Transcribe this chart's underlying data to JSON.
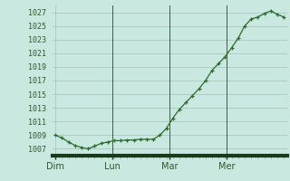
{
  "x_values": [
    0,
    1,
    2,
    3,
    4,
    5,
    6,
    7,
    8,
    9,
    10,
    11,
    12,
    13,
    14,
    15,
    16,
    17,
    18,
    19,
    20,
    21,
    22,
    23,
    24,
    25,
    26,
    27,
    28,
    29,
    30,
    31,
    32,
    33,
    34,
    35
  ],
  "y_values": [
    1009,
    1008.6,
    1008.0,
    1007.5,
    1007.2,
    1007.0,
    1007.4,
    1007.8,
    1008.0,
    1008.2,
    1008.2,
    1008.3,
    1008.3,
    1008.4,
    1008.4,
    1008.4,
    1009.0,
    1010.0,
    1011.5,
    1012.8,
    1013.8,
    1014.8,
    1015.8,
    1017.0,
    1018.5,
    1019.5,
    1020.5,
    1021.8,
    1023.2,
    1025.0,
    1026.0,
    1026.3,
    1026.8,
    1027.2,
    1026.7,
    1026.3
  ],
  "xtick_positions": [
    0,
    8.75,
    17.5,
    26.25
  ],
  "xtick_labels": [
    "Dim",
    "Lun",
    "Mar",
    "Mer"
  ],
  "xtick_vline_positions": [
    8.75,
    17.5,
    26.25
  ],
  "ytick_values": [
    1007,
    1009,
    1011,
    1013,
    1015,
    1017,
    1019,
    1021,
    1023,
    1025,
    1027
  ],
  "ylim": [
    1006.0,
    1028.0
  ],
  "xlim": [
    -0.5,
    35.5
  ],
  "line_color": "#2d6b2d",
  "marker_color": "#2d6b2d",
  "bg_color": "#c8e8e0",
  "grid_color": "#aabcbc",
  "vline_color": "#3a6040",
  "tick_label_color": "#2d5a2d",
  "bottom_bar_color": "#1a3a1a",
  "minor_tick_color": "#7a9a7a"
}
